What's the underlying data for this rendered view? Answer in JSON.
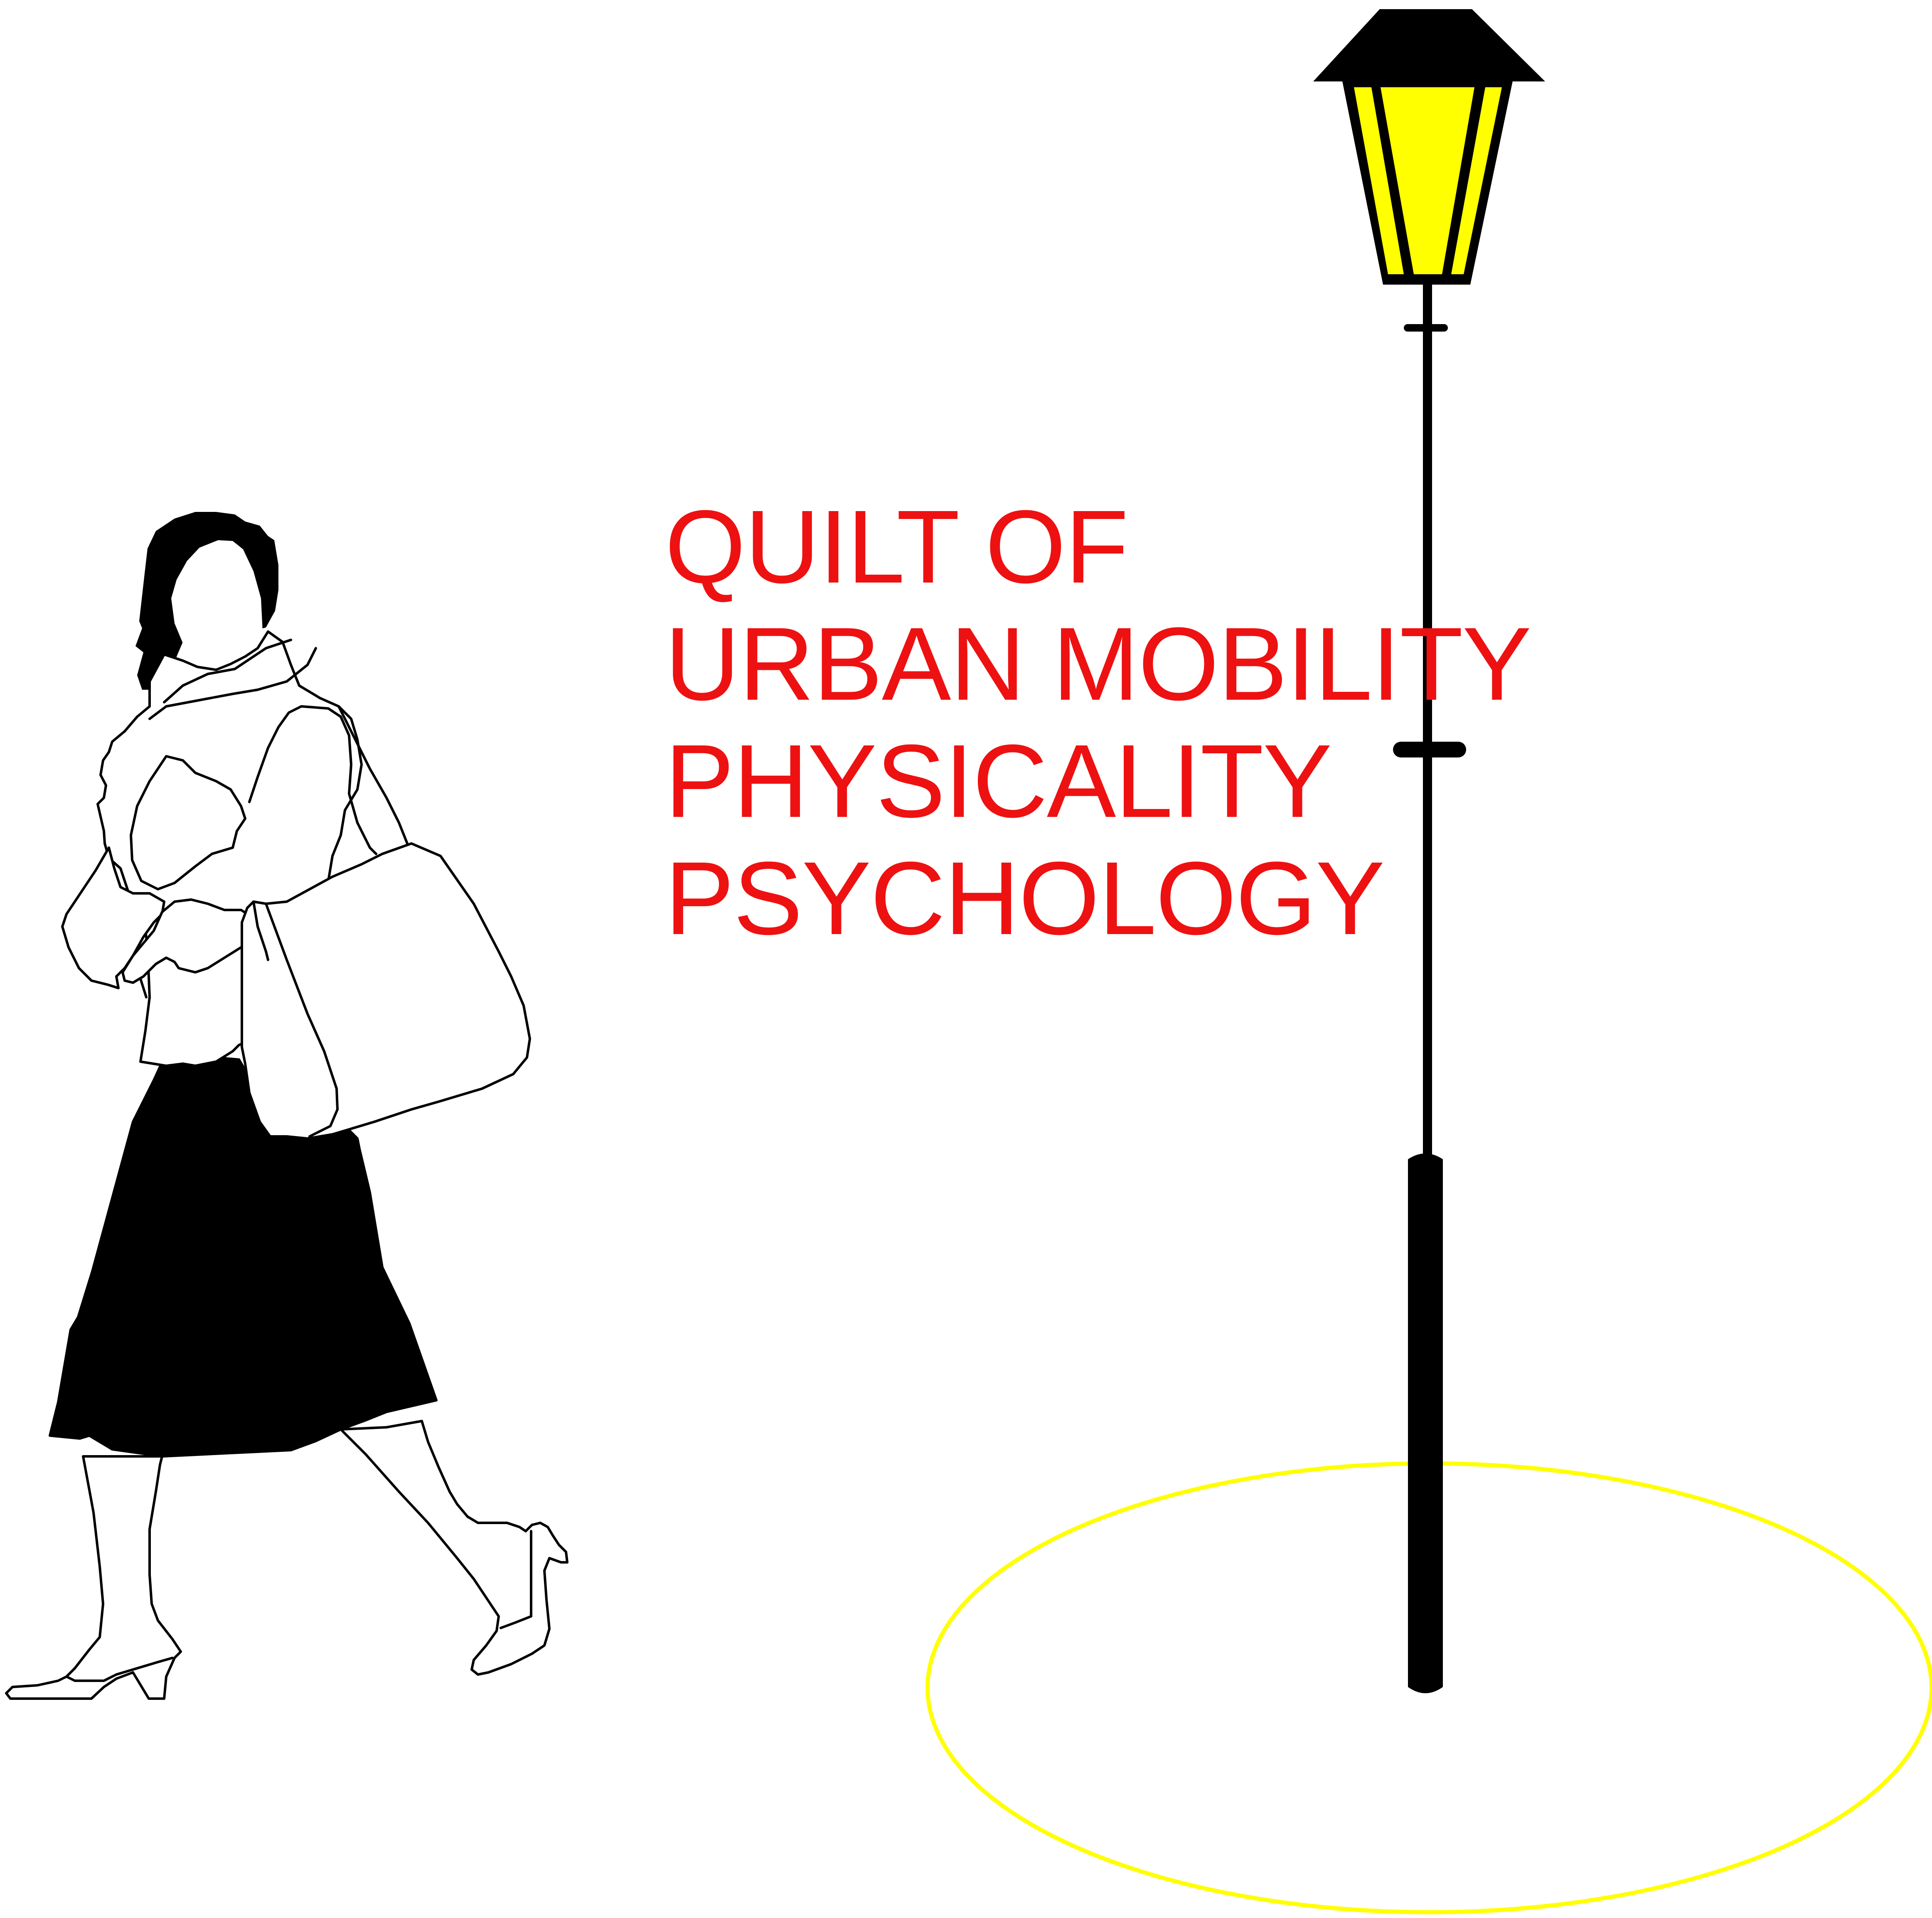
{
  "poster": {
    "title_lines": [
      "QUILT OF",
      "URBAN MOBILITY",
      "PHYSICALITY",
      "PSYCHOLOGY"
    ],
    "colors": {
      "title": "#ee1111",
      "lamp_glass": "#ffff00",
      "light_pool": "#ffff00",
      "lamp_metal": "#000000",
      "figure_outline": "#000000",
      "skirt": "#000000",
      "background": "#ffffff"
    },
    "illustrations": {
      "figure": "walking-woman-with-headscarf-and-handbag",
      "lamp": "street-lamp",
      "ground": "light-pool-ellipse"
    }
  }
}
